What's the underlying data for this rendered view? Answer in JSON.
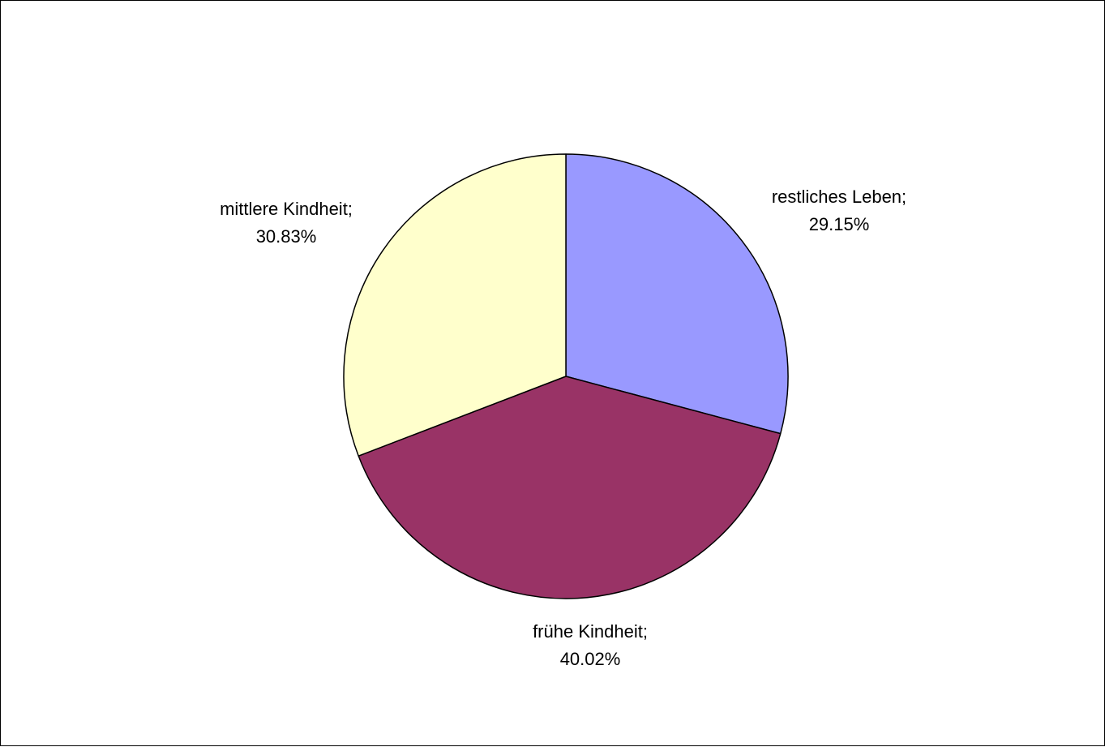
{
  "chart_data": {
    "type": "pie",
    "slices": [
      {
        "name": "restliches Leben",
        "value": 29.15,
        "label": "29.15%",
        "color": "#9999ff"
      },
      {
        "name": "frühe Kindheit",
        "value": 40.02,
        "label": "40.02%",
        "color": "#993366"
      },
      {
        "name": "mittlere Kindheit",
        "value": 30.83,
        "label": "30.83%",
        "color": "#ffffcc"
      }
    ],
    "start_angle": "12 o'clock, clockwise",
    "legend": "none",
    "labels": [
      {
        "name_text": "restliches Leben;",
        "value_text": "29.15%"
      },
      {
        "name_text": "frühe Kindheit;",
        "value_text": "40.02%"
      },
      {
        "name_text": "mittlere Kindheit;",
        "value_text": "30.83%"
      }
    ]
  }
}
